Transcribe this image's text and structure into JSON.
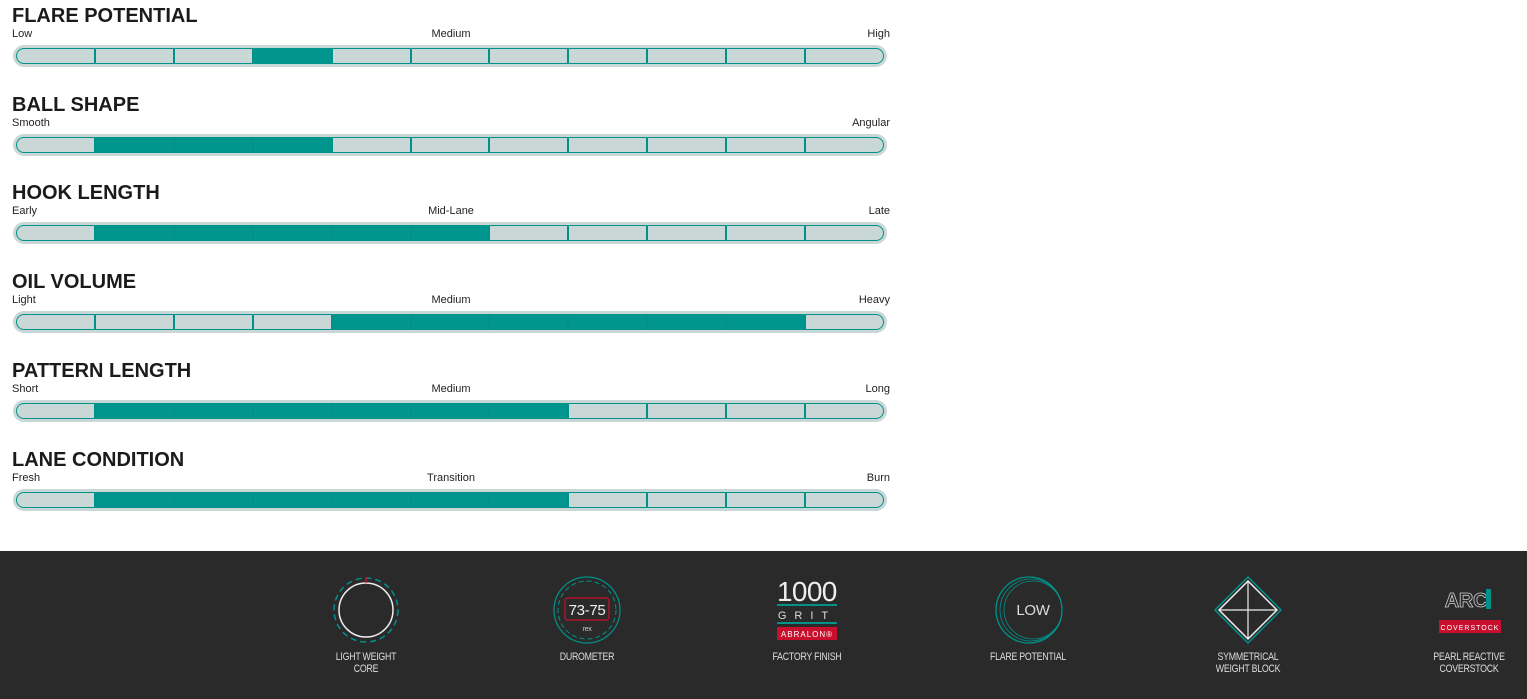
{
  "colors": {
    "accent": "#00968e",
    "track": "#c9d7d6",
    "footer_bg": "#2a2a2a",
    "brand_red": "#c8102e"
  },
  "segments_total": 11,
  "ratings": [
    {
      "title": "FLARE POTENTIAL",
      "labels": [
        "Low",
        "Medium",
        "High"
      ],
      "filled": [
        4
      ]
    },
    {
      "title": "BALL SHAPE",
      "labels": [
        "Smooth",
        "",
        "Angular"
      ],
      "filled": [
        2,
        3,
        4
      ]
    },
    {
      "title": "HOOK LENGTH",
      "labels": [
        "Early",
        "Mid-Lane",
        "Late"
      ],
      "filled": [
        2,
        3,
        4,
        5,
        6
      ]
    },
    {
      "title": "OIL VOLUME",
      "labels": [
        "Light",
        "Medium",
        "Heavy"
      ],
      "filled": [
        5,
        6,
        7,
        8,
        9,
        10
      ]
    },
    {
      "title": "PATTERN LENGTH",
      "labels": [
        "Short",
        "Medium",
        "Long"
      ],
      "filled": [
        2,
        3,
        4,
        5,
        6,
        7
      ]
    },
    {
      "title": "LANE CONDITION",
      "labels": [
        "Fresh",
        "Transition",
        "Burn"
      ],
      "filled": [
        2,
        3,
        4,
        5,
        6,
        7
      ]
    }
  ],
  "features": [
    {
      "icon": "light-weight-core-icon",
      "caption": "LIGHT WEIGHT\nCORE"
    },
    {
      "icon": "durometer-icon",
      "value": "73-75",
      "unit": "rex",
      "caption": "DUROMETER"
    },
    {
      "icon": "grit-icon",
      "value": "1000",
      "grit": "GRIT",
      "brand": "ABRALON®",
      "caption": "FACTORY FINISH"
    },
    {
      "icon": "flare-potential-icon",
      "value": "LOW",
      "caption": "FLARE POTENTIAL"
    },
    {
      "icon": "symmetrical-weight-block-icon",
      "caption": "SYMMETRICAL\nWEIGHT BLOCK"
    },
    {
      "icon": "arc-coverstock-logo",
      "logo": "ARC",
      "badge": "COVERSTOCK",
      "caption": "PEARL REACTIVE\nCOVERSTOCK"
    }
  ]
}
